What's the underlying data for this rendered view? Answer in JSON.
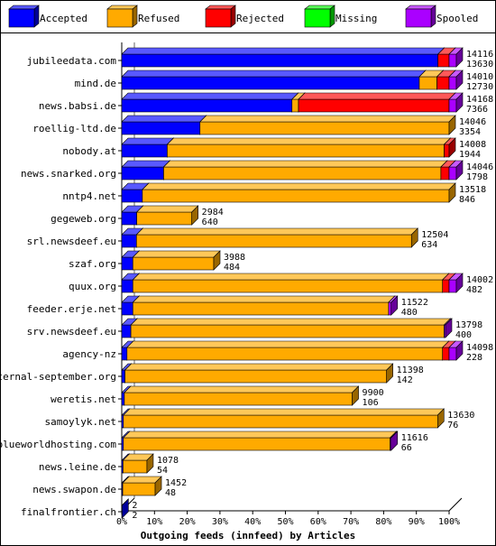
{
  "chart_data": {
    "type": "bar",
    "orientation": "horizontal",
    "stacked": true,
    "percent": true,
    "title": "Outgoing feeds (innfeed) by Articles",
    "legend_position": "top",
    "xlim": [
      0,
      100
    ],
    "x_ticks": [
      "0%",
      "10%",
      "20%",
      "30%",
      "40%",
      "50%",
      "60%",
      "70%",
      "80%",
      "90%",
      "100%"
    ],
    "legend": [
      {
        "name": "Accepted",
        "color": "#0000ff"
      },
      {
        "name": "Refused",
        "color": "#ffaa00"
      },
      {
        "name": "Rejected",
        "color": "#ff0000"
      },
      {
        "name": "Missing",
        "color": "#00ff00"
      },
      {
        "name": "Spooled",
        "color": "#aa00ff"
      }
    ],
    "rows": [
      {
        "name": "jubileedata.com",
        "total": "14116",
        "accepted": "13630",
        "segments": [
          96.6,
          0,
          3.4,
          0,
          0
        ],
        "spooled": true
      },
      {
        "name": "mind.de",
        "total": "14010",
        "accepted": "12730",
        "segments": [
          90.9,
          5.4,
          3.7,
          0,
          0
        ],
        "spooled": true
      },
      {
        "name": "news.babsi.de",
        "total": "14168",
        "accepted": "7366",
        "segments": [
          52.0,
          2.0,
          46.0,
          0,
          0
        ],
        "spooled": true
      },
      {
        "name": "roellig-ltd.de",
        "total": "14046",
        "accepted": "3354",
        "segments": [
          23.9,
          76.1,
          0,
          0,
          0
        ],
        "spooled": false
      },
      {
        "name": "nobody.at",
        "total": "14008",
        "accepted": "1944",
        "segments": [
          13.9,
          84.6,
          1.5,
          0,
          0
        ],
        "spooled": false
      },
      {
        "name": "news.snarked.org",
        "total": "14046",
        "accepted": "1798",
        "segments": [
          12.8,
          84.7,
          2.5,
          0,
          0
        ],
        "spooled": true
      },
      {
        "name": "nntp4.net",
        "total": "13518",
        "accepted": "846",
        "segments": [
          6.3,
          93.7,
          0,
          0,
          0
        ],
        "spooled": false
      },
      {
        "name": "gegeweb.org",
        "total": "2984",
        "accepted": "640",
        "segments": [
          4.6,
          16.8,
          0,
          0,
          0
        ],
        "spooled": false
      },
      {
        "name": "srl.newsdeef.eu",
        "total": "12504",
        "accepted": "634",
        "segments": [
          4.5,
          84.0,
          0,
          0,
          0
        ],
        "spooled": false
      },
      {
        "name": "szaf.org",
        "total": "3988",
        "accepted": "484",
        "segments": [
          3.4,
          24.7,
          0,
          0,
          0
        ],
        "spooled": false
      },
      {
        "name": "quux.org",
        "total": "14002",
        "accepted": "482",
        "segments": [
          3.4,
          94.6,
          2.0,
          0,
          0
        ],
        "spooled": true
      },
      {
        "name": "feeder.erje.net",
        "total": "11522",
        "accepted": "480",
        "segments": [
          3.4,
          78.1,
          0,
          0,
          0.8
        ],
        "spooled": false
      },
      {
        "name": "srv.newsdeef.eu",
        "total": "13798",
        "accepted": "400",
        "segments": [
          2.8,
          95.7,
          0,
          0,
          0.4
        ],
        "spooled": false
      },
      {
        "name": "agency-nz",
        "total": "14098",
        "accepted": "228",
        "segments": [
          1.6,
          96.4,
          2.0,
          0,
          0
        ],
        "spooled": true
      },
      {
        "name": "eternal-september.org",
        "total": "11398",
        "accepted": "142",
        "segments": [
          1.0,
          79.9,
          0,
          0,
          0
        ],
        "spooled": false
      },
      {
        "name": "weretis.net",
        "total": "9900",
        "accepted": "106",
        "segments": [
          0.8,
          69.6,
          0,
          0,
          0
        ],
        "spooled": false
      },
      {
        "name": "samoylyk.net",
        "total": "13630",
        "accepted": "76",
        "segments": [
          0.5,
          96.0,
          0,
          0,
          0
        ],
        "spooled": false
      },
      {
        "name": "blueworldhosting.com",
        "total": "11616",
        "accepted": "66",
        "segments": [
          0.5,
          81.5,
          0,
          0,
          0.3
        ],
        "spooled": false
      },
      {
        "name": "news.leine.de",
        "total": "1078",
        "accepted": "54",
        "segments": [
          0.4,
          7.3,
          0,
          0,
          0
        ],
        "spooled": false
      },
      {
        "name": "news.swapon.de",
        "total": "1452",
        "accepted": "48",
        "segments": [
          0.3,
          9.9,
          0,
          0,
          0
        ],
        "spooled": false
      },
      {
        "name": "finalfrontier.ch",
        "total": "2",
        "accepted": "2",
        "segments": [
          0.1,
          0,
          0,
          0,
          0
        ],
        "spooled": false
      }
    ]
  }
}
